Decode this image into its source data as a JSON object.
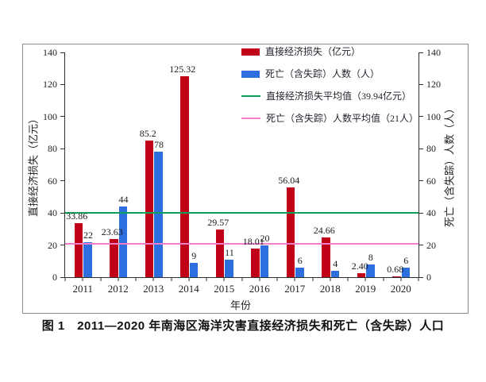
{
  "figure": {
    "caption": "图 1　2011—2020 年南海区海洋灾害直接经济损失和死亡（含失踪）人口"
  },
  "chart_data": {
    "type": "bar",
    "categories": [
      "2011",
      "2012",
      "2013",
      "2014",
      "2015",
      "2016",
      "2017",
      "2018",
      "2019",
      "2020"
    ],
    "series": [
      {
        "name": "直接经济损失（亿元）",
        "axis": "left",
        "color": "#c00018",
        "values": [
          33.86,
          23.63,
          85.2,
          125.32,
          29.57,
          18.01,
          56.04,
          24.66,
          2.4,
          0.68
        ],
        "labels": [
          "33.86",
          "23.63",
          "85.2",
          "125.32",
          "29.57",
          "18.01",
          "56.04",
          "24.66",
          "2.40",
          "0.68"
        ]
      },
      {
        "name": "死亡（含失踪）人数（人）",
        "axis": "right",
        "color": "#2e6fe0",
        "values": [
          22,
          44,
          78,
          9,
          11,
          20,
          6,
          4,
          8,
          6
        ],
        "labels": [
          "22",
          "44",
          "78",
          "9",
          "11",
          "20",
          "6",
          "4",
          "8",
          "6"
        ]
      }
    ],
    "reference_lines": [
      {
        "name": "直接经济损失平均值（39.94亿元）",
        "value": 39.94,
        "color": "#0ca05c"
      },
      {
        "name": "死亡（含失踪）人数平均值（21人）",
        "value": 21,
        "color": "#f27ec8"
      }
    ],
    "title": "",
    "xlabel": "年份",
    "ylabel_left": "直接经济损失（亿元）",
    "ylabel_right": "死亡（含失踪）人数（人）",
    "ylim": [
      0,
      140
    ],
    "yticks": [
      0,
      20,
      40,
      60,
      80,
      100,
      120,
      140
    ],
    "legend_position": "top-right",
    "grid": false
  }
}
